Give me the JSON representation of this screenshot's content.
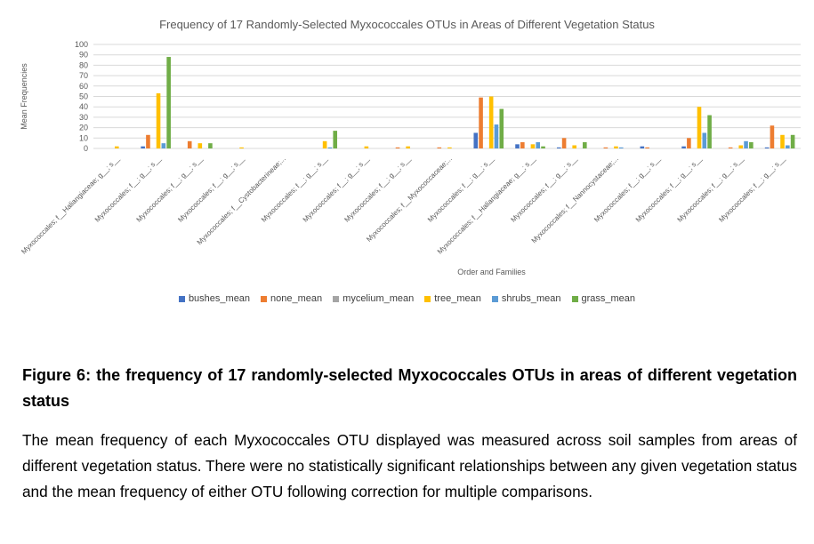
{
  "figure": {
    "caption_title": "Figure 6: the frequency of 17 randomly-selected Myxococcales OTUs in areas of different vegetation status",
    "caption_body": "The mean frequency of each Myxococcales OTU displayed was measured across soil samples from areas of different vegetation status. There were no statistically significant relationships between any given vegetation status and the mean frequency of either OTU following correction for multiple comparisons."
  },
  "chart_data": {
    "type": "bar",
    "title": "Frequency of 17 Randomly-Selected Myxococcales OTUs in Areas of Different Vegetation Status",
    "xlabel": "Order and Families",
    "ylabel": "Mean Frequencies",
    "ylim": [
      0,
      100
    ],
    "yticks": [
      0,
      10,
      20,
      30,
      40,
      50,
      60,
      70,
      80,
      90,
      100
    ],
    "grid": true,
    "legend_position": "bottom",
    "categories": [
      "Myxococcales; f__Haliangiaceae; g__; s__",
      "Myxococcales; f__; g__; s__",
      "Myxococcales; f__; g__; s__",
      "Myxococcales; f__; g__; s__",
      "Myxococcales; f__Cystobacterineae;...",
      "Myxococcales; f__; g__; s__",
      "Myxococcales; f__; g__; s__",
      "Myxococcales; f__; g__; s__",
      "Myxococcales; f__Myxococcaceae;...",
      "Myxococcales; f__; g__; s__",
      "Myxococcales; f__Haliangiaceae; g__; s__",
      "Myxococcales; f__; g__; s__",
      "Myxococcales; f__Nannocystaceae;...",
      "Myxococcales; f__; g__; s__",
      "Myxococcales; f__; g__; s__",
      "Myxococcales; f__; g__; s__",
      "Myxococcales; f__; g__; s__"
    ],
    "series": [
      {
        "name": "bushes_mean",
        "color": "#4472c4",
        "values": [
          0,
          2,
          0,
          0,
          0,
          0,
          0,
          0,
          0,
          15,
          4,
          1,
          0,
          2,
          2,
          0,
          1
        ]
      },
      {
        "name": "none_mean",
        "color": "#ed7d31",
        "values": [
          0,
          13,
          7,
          0,
          0,
          0,
          0,
          1,
          1,
          49,
          6,
          10,
          1,
          1,
          10,
          1,
          22
        ]
      },
      {
        "name": "mycelium_mean",
        "color": "#a5a5a5",
        "values": [
          0,
          0,
          0,
          0,
          0,
          0,
          0,
          0,
          0,
          0,
          0,
          0,
          0,
          0,
          0,
          0,
          0
        ]
      },
      {
        "name": "tree_mean",
        "color": "#ffc000",
        "values": [
          2,
          53,
          5,
          1,
          0,
          7,
          2,
          2,
          1,
          50,
          4,
          3,
          2,
          0,
          40,
          3,
          13
        ]
      },
      {
        "name": "shrubs_mean",
        "color": "#5b9bd5",
        "values": [
          0,
          5,
          0,
          0,
          0,
          1,
          0,
          0,
          0,
          23,
          6,
          0,
          1,
          0,
          15,
          7,
          3
        ]
      },
      {
        "name": "grass_mean",
        "color": "#70ad47",
        "values": [
          0,
          88,
          5,
          0,
          0,
          17,
          0,
          0,
          0,
          38,
          2,
          6,
          0,
          0,
          32,
          6,
          13
        ]
      }
    ]
  }
}
